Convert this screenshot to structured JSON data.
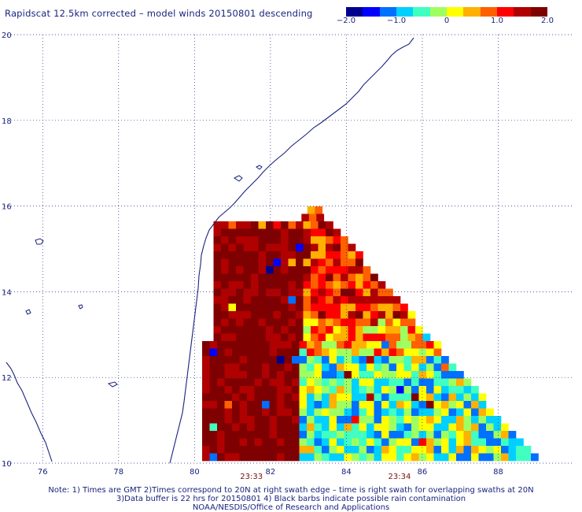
{
  "title": "Rapidscat 12.5km corrected – model winds 20150801 descending",
  "colorbar": {
    "range": [
      -2.0,
      2.0
    ],
    "tick_labels": [
      "−2.0",
      "−1.0",
      "0",
      "1.0",
      "2.0"
    ],
    "colors": [
      "#00008f",
      "#0000ff",
      "#0070ff",
      "#00d0ff",
      "#40ffc0",
      "#a0ff60",
      "#ffff00",
      "#ffb000",
      "#ff6000",
      "#ff0000",
      "#b00000",
      "#7f0000"
    ]
  },
  "map": {
    "lon_range": [
      75,
      90
    ],
    "lat_range": [
      10,
      20
    ],
    "lon_ticks": [
      "76",
      "78",
      "80",
      "82",
      "84",
      "86",
      "88"
    ],
    "lat_ticks": [
      "10",
      "12",
      "14",
      "16",
      "18",
      "20"
    ],
    "grid": "dotted"
  },
  "time_labels": [
    {
      "text": "23:33",
      "lon": 81.5
    },
    {
      "text": "23:34",
      "lon": 85.4
    }
  ],
  "notes": {
    "line1": "Note: 1) Times are GMT 2)Times correspond to 20N at right swath edge – time is right swath for overlapping swaths at 20N",
    "line2": "3)Data buffer is 22 hrs for 20150801 4) Black barbs indicate possible rain contamination",
    "line3": "NOAA/NESDIS/Office of Research and Applications"
  }
}
